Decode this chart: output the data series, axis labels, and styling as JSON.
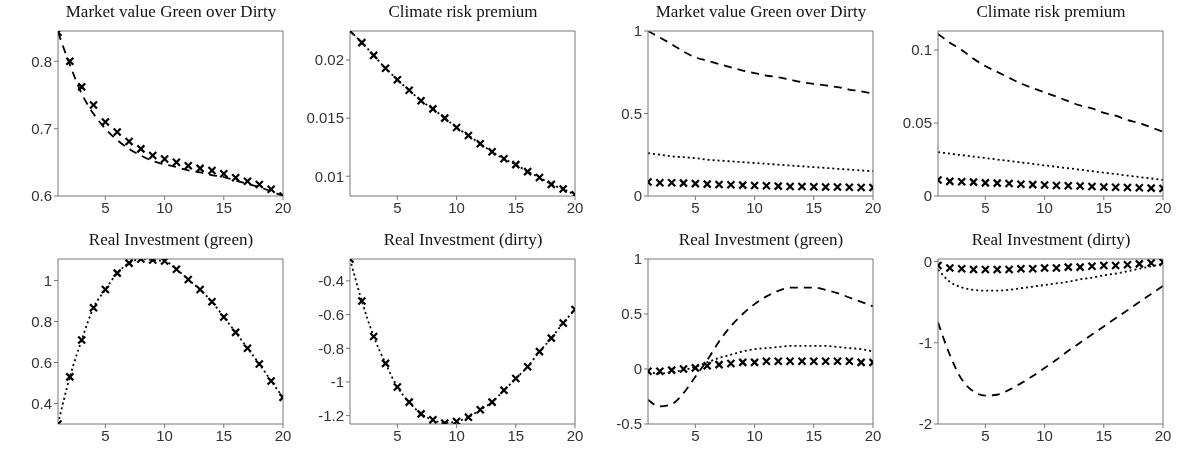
{
  "chart_data": [
    {
      "type": "line",
      "title": "Market value Green over Dirty",
      "x": [
        1,
        2,
        3,
        4,
        5,
        6,
        7,
        8,
        9,
        10,
        11,
        12,
        13,
        14,
        15,
        16,
        17,
        18,
        19,
        20
      ],
      "xlim": [
        1,
        20
      ],
      "xticks": [
        5,
        10,
        15,
        20
      ],
      "ylim": [
        0.6,
        0.845
      ],
      "yticks": [
        0.6,
        0.7,
        0.8
      ],
      "series": [
        {
          "type": "line",
          "line_style": "dashed",
          "color": "#000000",
          "values": [
            0.843,
            0.795,
            0.752,
            0.722,
            0.7,
            0.683,
            0.67,
            0.66,
            0.652,
            0.647,
            0.643,
            0.638,
            0.635,
            0.631,
            0.628,
            0.623,
            0.618,
            0.613,
            0.607,
            0.6
          ]
        },
        {
          "type": "scatter",
          "marker": "cross",
          "color": "#000000",
          "values": [
            0.843,
            0.8,
            0.762,
            0.735,
            0.71,
            0.695,
            0.681,
            0.67,
            0.66,
            0.655,
            0.65,
            0.645,
            0.641,
            0.638,
            0.633,
            0.627,
            0.622,
            0.617,
            0.61,
            0.6
          ]
        }
      ]
    },
    {
      "type": "line",
      "title": "Climate risk premium",
      "x": [
        1,
        2,
        3,
        4,
        5,
        6,
        7,
        8,
        9,
        10,
        11,
        12,
        13,
        14,
        15,
        16,
        17,
        18,
        19,
        20
      ],
      "xlim": [
        1,
        20
      ],
      "xticks": [
        5,
        10,
        15,
        20
      ],
      "ylim": [
        0.0083,
        0.0225
      ],
      "yticks": [
        0.01,
        0.015,
        0.02
      ],
      "series": [
        {
          "type": "line",
          "line_style": "dotted",
          "marker": "cross",
          "color": "#000000",
          "values": [
            0.0225,
            0.0215,
            0.0204,
            0.0193,
            0.0183,
            0.0174,
            0.0165,
            0.0158,
            0.015,
            0.0142,
            0.0135,
            0.0128,
            0.0121,
            0.0115,
            0.011,
            0.0104,
            0.0099,
            0.0093,
            0.0089,
            0.0084
          ]
        }
      ]
    },
    {
      "type": "line",
      "title": "Market value Green over Dirty",
      "x": [
        1,
        2,
        3,
        4,
        5,
        6,
        7,
        8,
        9,
        10,
        11,
        12,
        13,
        14,
        15,
        16,
        17,
        18,
        19,
        20
      ],
      "xlim": [
        1,
        20
      ],
      "xticks": [
        5,
        10,
        15,
        20
      ],
      "ylim": [
        0,
        1
      ],
      "yticks": [
        0,
        0.5,
        1
      ],
      "series": [
        {
          "type": "line",
          "line_style": "dashed",
          "color": "#000000",
          "values": [
            1.0,
            0.96,
            0.92,
            0.875,
            0.84,
            0.82,
            0.8,
            0.78,
            0.76,
            0.745,
            0.73,
            0.72,
            0.705,
            0.69,
            0.68,
            0.67,
            0.66,
            0.645,
            0.635,
            0.62
          ]
        },
        {
          "type": "line",
          "line_style": "dotted",
          "color": "#000000",
          "values": [
            0.26,
            0.25,
            0.24,
            0.235,
            0.23,
            0.22,
            0.215,
            0.21,
            0.205,
            0.2,
            0.195,
            0.19,
            0.185,
            0.18,
            0.175,
            0.17,
            0.165,
            0.16,
            0.155,
            0.15
          ]
        },
        {
          "type": "scatter",
          "marker": "cross",
          "color": "#000000",
          "values": [
            0.085,
            0.08,
            0.08,
            0.078,
            0.075,
            0.072,
            0.07,
            0.068,
            0.066,
            0.064,
            0.062,
            0.06,
            0.058,
            0.057,
            0.056,
            0.055,
            0.054,
            0.053,
            0.052,
            0.051
          ]
        }
      ]
    },
    {
      "type": "line",
      "title": "Climate risk premium",
      "x": [
        1,
        2,
        3,
        4,
        5,
        6,
        7,
        8,
        9,
        10,
        11,
        12,
        13,
        14,
        15,
        16,
        17,
        18,
        19,
        20
      ],
      "xlim": [
        1,
        20
      ],
      "xticks": [
        5,
        10,
        15,
        20
      ],
      "ylim": [
        0,
        0.113
      ],
      "yticks": [
        0,
        0.05,
        0.1
      ],
      "series": [
        {
          "type": "line",
          "line_style": "dashed",
          "color": "#000000",
          "values": [
            0.111,
            0.105,
            0.1,
            0.094,
            0.089,
            0.085,
            0.081,
            0.077,
            0.074,
            0.071,
            0.068,
            0.065,
            0.062,
            0.06,
            0.057,
            0.055,
            0.052,
            0.05,
            0.047,
            0.044
          ]
        },
        {
          "type": "line",
          "line_style": "dotted",
          "color": "#000000",
          "values": [
            0.03,
            0.029,
            0.028,
            0.027,
            0.026,
            0.025,
            0.024,
            0.023,
            0.022,
            0.021,
            0.02,
            0.019,
            0.018,
            0.017,
            0.016,
            0.015,
            0.014,
            0.013,
            0.012,
            0.011
          ]
        },
        {
          "type": "scatter",
          "marker": "cross",
          "color": "#000000",
          "values": [
            0.011,
            0.01,
            0.0098,
            0.0095,
            0.009,
            0.0088,
            0.0085,
            0.008,
            0.0078,
            0.0075,
            0.0072,
            0.007,
            0.0068,
            0.0065,
            0.0062,
            0.006,
            0.0058,
            0.0056,
            0.0054,
            0.0052
          ]
        }
      ]
    },
    {
      "type": "line",
      "title": "Real Investment (green)",
      "x": [
        1,
        2,
        3,
        4,
        5,
        6,
        7,
        8,
        9,
        10,
        11,
        12,
        13,
        14,
        15,
        16,
        17,
        18,
        19,
        20
      ],
      "xlim": [
        1,
        20
      ],
      "xticks": [
        5,
        10,
        15,
        20
      ],
      "ylim": [
        0.3,
        1.105
      ],
      "yticks": [
        0.4,
        0.6,
        0.8,
        1
      ],
      "series": [
        {
          "type": "line",
          "line_style": "dotted",
          "marker": "cross",
          "color": "#000000",
          "values": [
            0.3,
            0.53,
            0.71,
            0.867,
            0.956,
            1.036,
            1.085,
            1.105,
            1.1,
            1.095,
            1.055,
            1.005,
            0.956,
            0.896,
            0.822,
            0.747,
            0.67,
            0.593,
            0.51,
            0.43
          ]
        }
      ]
    },
    {
      "type": "line",
      "title": "Real Investment (dirty)",
      "x": [
        1,
        2,
        3,
        4,
        5,
        6,
        7,
        8,
        9,
        10,
        11,
        12,
        13,
        14,
        15,
        16,
        17,
        18,
        19,
        20
      ],
      "xlim": [
        1,
        20
      ],
      "xticks": [
        5,
        10,
        15,
        20
      ],
      "ylim": [
        -1.25,
        -0.27
      ],
      "yticks": [
        -1.2,
        -1,
        -0.8,
        -0.6,
        -0.4
      ],
      "series": [
        {
          "type": "line",
          "line_style": "dotted",
          "marker": "cross",
          "color": "#000000",
          "values": [
            -0.27,
            -0.52,
            -0.73,
            -0.89,
            -1.03,
            -1.12,
            -1.19,
            -1.225,
            -1.245,
            -1.235,
            -1.21,
            -1.165,
            -1.12,
            -1.05,
            -0.98,
            -0.91,
            -0.82,
            -0.74,
            -0.65,
            -0.57
          ]
        }
      ]
    },
    {
      "type": "line",
      "title": "Real Investment (green)",
      "x": [
        1,
        2,
        3,
        4,
        5,
        6,
        7,
        8,
        9,
        10,
        11,
        12,
        13,
        14,
        15,
        16,
        17,
        18,
        19,
        20
      ],
      "xlim": [
        1,
        20
      ],
      "xticks": [
        5,
        10,
        15,
        20
      ],
      "ylim": [
        -0.5,
        1
      ],
      "yticks": [
        -0.5,
        0,
        0.5,
        1
      ],
      "series": [
        {
          "type": "line",
          "line_style": "dashed",
          "color": "#000000",
          "values": [
            -0.28,
            -0.34,
            -0.32,
            -0.22,
            -0.07,
            0.08,
            0.25,
            0.39,
            0.5,
            0.59,
            0.66,
            0.71,
            0.74,
            0.74,
            0.74,
            0.72,
            0.69,
            0.65,
            0.61,
            0.57
          ]
        },
        {
          "type": "line",
          "line_style": "dotted",
          "color": "#000000",
          "values": [
            -0.03,
            -0.04,
            -0.03,
            -0.01,
            0.02,
            0.06,
            0.1,
            0.13,
            0.16,
            0.18,
            0.19,
            0.2,
            0.21,
            0.21,
            0.21,
            0.21,
            0.2,
            0.19,
            0.18,
            0.16
          ]
        },
        {
          "type": "scatter",
          "marker": "cross",
          "color": "#000000",
          "values": [
            -0.02,
            -0.02,
            -0.01,
            0.0,
            0.01,
            0.03,
            0.04,
            0.05,
            0.06,
            0.06,
            0.07,
            0.07,
            0.07,
            0.07,
            0.07,
            0.07,
            0.07,
            0.07,
            0.06,
            0.06
          ]
        }
      ]
    },
    {
      "type": "line",
      "title": "Real Investment (dirty)",
      "x": [
        1,
        2,
        3,
        4,
        5,
        6,
        7,
        8,
        9,
        10,
        11,
        12,
        13,
        14,
        15,
        16,
        17,
        18,
        19,
        20
      ],
      "xlim": [
        1,
        20
      ],
      "xticks": [
        5,
        10,
        15,
        20
      ],
      "ylim": [
        -2,
        0.03
      ],
      "yticks": [
        -2,
        -1,
        0
      ],
      "series": [
        {
          "type": "line",
          "line_style": "dashed",
          "color": "#000000",
          "values": [
            -0.75,
            -1.15,
            -1.45,
            -1.6,
            -1.65,
            -1.64,
            -1.58,
            -1.5,
            -1.41,
            -1.31,
            -1.21,
            -1.1,
            -1.0,
            -0.9,
            -0.8,
            -0.7,
            -0.6,
            -0.5,
            -0.4,
            -0.3
          ]
        },
        {
          "type": "line",
          "line_style": "dotted",
          "color": "#000000",
          "values": [
            -0.1,
            -0.25,
            -0.32,
            -0.35,
            -0.36,
            -0.36,
            -0.35,
            -0.33,
            -0.31,
            -0.29,
            -0.27,
            -0.25,
            -0.22,
            -0.2,
            -0.17,
            -0.15,
            -0.12,
            -0.09,
            -0.06,
            -0.03
          ]
        },
        {
          "type": "scatter",
          "marker": "cross",
          "color": "#000000",
          "values": [
            -0.05,
            -0.08,
            -0.09,
            -0.1,
            -0.1,
            -0.1,
            -0.1,
            -0.09,
            -0.09,
            -0.08,
            -0.08,
            -0.07,
            -0.07,
            -0.06,
            -0.05,
            -0.05,
            -0.04,
            -0.03,
            -0.02,
            -0.01
          ]
        }
      ]
    }
  ]
}
